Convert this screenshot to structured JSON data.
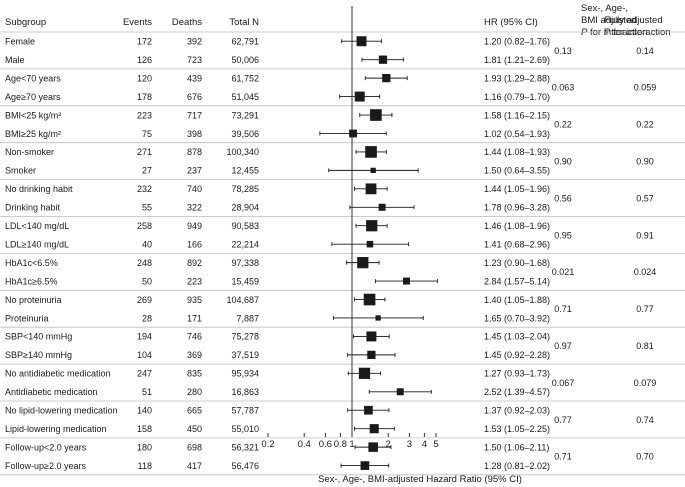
{
  "chart_data": {
    "type": "forest",
    "headers": {
      "subgroup": "Subgroup",
      "events": "Events",
      "deaths": "Deaths",
      "total": "Total N",
      "hr": "HR (95% CI)",
      "p1_line1": "Sex-, Age-,",
      "p1_line2": "BMI adjusted",
      "p1_p": "P",
      "p1_line3": " for interaction",
      "p2_line1": "Fully adjusted",
      "p2_p": "P",
      "p2_line2": " for interaction"
    },
    "xlabel": "Sex-, Age-, BMI-adjusted Hazard Ratio (95% CI)",
    "x_scale": "log",
    "xlim": [
      0.2,
      5
    ],
    "reference_line": 1,
    "ticks": [
      {
        "value": 0.2,
        "label": "0.2"
      },
      {
        "value": 0.4,
        "label": "0.4"
      },
      {
        "value": 0.6,
        "label": "0.6"
      },
      {
        "value": 0.8,
        "label": "0.8"
      },
      {
        "value": 1,
        "label": "1"
      },
      {
        "value": 2,
        "label": "2"
      },
      {
        "value": 3,
        "label": "3"
      },
      {
        "value": 4,
        "label": "4"
      },
      {
        "value": 5,
        "label": "5"
      }
    ],
    "groups": [
      {
        "p_interaction": "0.13",
        "p_full": "0.14",
        "rows": [
          {
            "label": "Female",
            "events": "172",
            "deaths": "392",
            "total": "62,791",
            "hr": 1.2,
            "lo": 0.82,
            "hi": 1.76,
            "hr_text": "1.20 (0.82–1.76)",
            "weight": 0.7
          },
          {
            "label": "Male",
            "events": "126",
            "deaths": "723",
            "total": "50,006",
            "hr": 1.81,
            "lo": 1.21,
            "hi": 2.69,
            "hr_text": "1.81 (1.21–2.69)",
            "weight": 0.5
          }
        ]
      },
      {
        "p_interaction": "0.063",
        "p_full": "0.059",
        "rows": [
          {
            "label": "Age<70 years",
            "events": "120",
            "deaths": "439",
            "total": "61,752",
            "hr": 1.93,
            "lo": 1.29,
            "hi": 2.88,
            "hr_text": "1.93 (1.29–2.88)",
            "weight": 0.5
          },
          {
            "label": "Age≥70 years",
            "events": "178",
            "deaths": "676",
            "total": "51,045",
            "hr": 1.16,
            "lo": 0.79,
            "hi": 1.7,
            "hr_text": "1.16 (0.79–1.70)",
            "weight": 0.7
          }
        ]
      },
      {
        "p_interaction": "0.22",
        "p_full": "0.22",
        "rows": [
          {
            "label": "BMI<25 kg/m²",
            "events": "223",
            "deaths": "717",
            "total": "73,291",
            "hr": 1.58,
            "lo": 1.16,
            "hi": 2.15,
            "hr_text": "1.58 (1.16–2.15)",
            "weight": 0.9
          },
          {
            "label": "BMI≥25 kg/m²",
            "events": "75",
            "deaths": "398",
            "total": "39,506",
            "hr": 1.02,
            "lo": 0.54,
            "hi": 1.93,
            "hr_text": "1.02 (0.54–1.93)",
            "weight": 0.45
          }
        ]
      },
      {
        "p_interaction": "0.90",
        "p_full": "0.90",
        "rows": [
          {
            "label": "Non-smoker",
            "events": "271",
            "deaths": "878",
            "total": "100,340",
            "hr": 1.44,
            "lo": 1.08,
            "hi": 1.93,
            "hr_text": "1.44 (1.08–1.93)",
            "weight": 0.9
          },
          {
            "label": "Smoker",
            "events": "27",
            "deaths": "237",
            "total": "12,455",
            "hr": 1.5,
            "lo": 0.64,
            "hi": 3.55,
            "hr_text": "1.50 (0.64–3.55)",
            "weight": 0.15
          }
        ]
      },
      {
        "p_interaction": "0.56",
        "p_full": "0.57",
        "rows": [
          {
            "label": "No drinking habit",
            "events": "232",
            "deaths": "740",
            "total": "78,285",
            "hr": 1.44,
            "lo": 1.05,
            "hi": 1.96,
            "hr_text": "1.44 (1.05–1.96)",
            "weight": 0.8
          },
          {
            "label": "Drinking habit",
            "events": "55",
            "deaths": "322",
            "total": "28,904",
            "hr": 1.78,
            "lo": 0.96,
            "hi": 3.28,
            "hr_text": "1.78 (0.96–3.28)",
            "weight": 0.35
          }
        ]
      },
      {
        "p_interaction": "0.95",
        "p_full": "0.91",
        "rows": [
          {
            "label": "LDL<140 mg/dL",
            "events": "258",
            "deaths": "949",
            "total": "90,583",
            "hr": 1.46,
            "lo": 1.08,
            "hi": 1.96,
            "hr_text": "1.46 (1.08–1.96)",
            "weight": 0.85
          },
          {
            "label": "LDL≥140 mg/dL",
            "events": "40",
            "deaths": "166",
            "total": "22,214",
            "hr": 1.41,
            "lo": 0.68,
            "hi": 2.96,
            "hr_text": "1.41 (0.68–2.96)",
            "weight": 0.3
          }
        ]
      },
      {
        "p_interaction": "0.021",
        "p_full": "0.024",
        "rows": [
          {
            "label": "HbA1c<6.5%",
            "events": "248",
            "deaths": "892",
            "total": "97,338",
            "hr": 1.23,
            "lo": 0.9,
            "hi": 1.68,
            "hr_text": "1.23 (0.90–1.68)",
            "weight": 0.85
          },
          {
            "label": "HbA1c≥6.5%",
            "events": "50",
            "deaths": "223",
            "total": "15,459",
            "hr": 2.84,
            "lo": 1.57,
            "hi": 5.14,
            "hr_text": "2.84 (1.57–5.14)",
            "weight": 0.35
          }
        ]
      },
      {
        "p_interaction": "0.71",
        "p_full": "0.77",
        "rows": [
          {
            "label": "No proteinuria",
            "events": "269",
            "deaths": "935",
            "total": "104,687",
            "hr": 1.4,
            "lo": 1.05,
            "hi": 1.88,
            "hr_text": "1.40 (1.05–1.88)",
            "weight": 0.9
          },
          {
            "label": "Proteinuria",
            "events": "28",
            "deaths": "171",
            "total": "7,887",
            "hr": 1.65,
            "lo": 0.7,
            "hi": 3.92,
            "hr_text": "1.65 (0.70–3.92)",
            "weight": 0.15
          }
        ]
      },
      {
        "p_interaction": "0.97",
        "p_full": "0.81",
        "rows": [
          {
            "label": "SBP<140 mmHg",
            "events": "194",
            "deaths": "746",
            "total": "75,278",
            "hr": 1.45,
            "lo": 1.03,
            "hi": 2.04,
            "hr_text": "1.45 (1.03–2.04)",
            "weight": 0.7
          },
          {
            "label": "SBP≥140 mmHg",
            "events": "104",
            "deaths": "369",
            "total": "37,519",
            "hr": 1.45,
            "lo": 0.92,
            "hi": 2.28,
            "hr_text": "1.45 (0.92–2.28)",
            "weight": 0.5
          }
        ]
      },
      {
        "p_interaction": "0.067",
        "p_full": "0.079",
        "rows": [
          {
            "label": "No antidiabetic medication",
            "events": "247",
            "deaths": "835",
            "total": "95,934",
            "hr": 1.27,
            "lo": 0.93,
            "hi": 1.73,
            "hr_text": "1.27 (0.93–1.73)",
            "weight": 0.85
          },
          {
            "label": "Antidiabetic medication",
            "events": "51",
            "deaths": "280",
            "total": "16,863",
            "hr": 2.52,
            "lo": 1.39,
            "hi": 4.57,
            "hr_text": "2.52 (1.39–4.57)",
            "weight": 0.35
          }
        ]
      },
      {
        "p_interaction": "0.77",
        "p_full": "0.74",
        "rows": [
          {
            "label": "No lipid-lowering medication",
            "events": "140",
            "deaths": "665",
            "total": "57,787",
            "hr": 1.37,
            "lo": 0.92,
            "hi": 2.03,
            "hr_text": "1.37 (0.92–2.03)",
            "weight": 0.55
          },
          {
            "label": "Lipid-lowering medication",
            "events": "158",
            "deaths": "450",
            "total": "55,010",
            "hr": 1.53,
            "lo": 1.05,
            "hi": 2.25,
            "hr_text": "1.53 (1.05–2.25)",
            "weight": 0.6
          }
        ]
      },
      {
        "p_interaction": "0.71",
        "p_full": "0.70",
        "rows": [
          {
            "label": "Follow-up<2.0 years",
            "events": "180",
            "deaths": "698",
            "total": "56,321",
            "hr": 1.5,
            "lo": 1.06,
            "hi": 2.11,
            "hr_text": "1.50 (1.06–2.11)",
            "weight": 0.65
          },
          {
            "label": "Follow-up≥2.0 years",
            "events": "118",
            "deaths": "417",
            "total": "56,476",
            "hr": 1.28,
            "lo": 0.81,
            "hi": 2.02,
            "hr_text": "1.28 (0.81–2.02)",
            "weight": 0.55
          }
        ]
      }
    ]
  }
}
